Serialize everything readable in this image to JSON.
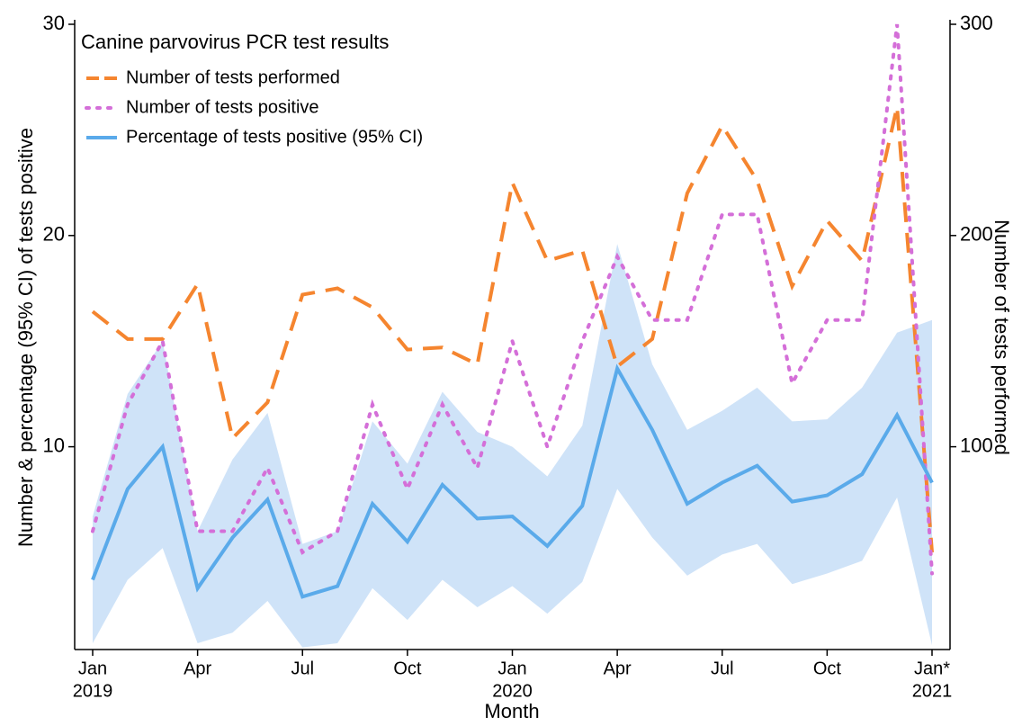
{
  "chart_data": {
    "type": "line",
    "legend_title": "Canine parvovirus PCR test results",
    "x_label": "Month",
    "y_label": "Number & percentage (95% CI) of tests positive",
    "y2_label": "Number of tests performed",
    "categories": [
      "Jan",
      null,
      null,
      "Apr",
      null,
      null,
      "Jul",
      null,
      null,
      "Oct",
      null,
      null,
      "Jan",
      null,
      null,
      "Apr",
      null,
      null,
      "Jul",
      null,
      null,
      "Oct",
      null,
      null,
      "Jan*"
    ],
    "category_years": [
      "2019",
      null,
      null,
      null,
      null,
      null,
      null,
      null,
      null,
      null,
      null,
      null,
      "2020",
      null,
      null,
      null,
      null,
      null,
      null,
      null,
      null,
      null,
      null,
      null,
      "2021"
    ],
    "ylim": [
      0.4,
      30
    ],
    "yticks": [
      10,
      20,
      30
    ],
    "y2lim": [
      4,
      300
    ],
    "y2ticks": [
      100,
      200,
      300
    ],
    "legend": "upper left",
    "series": [
      {
        "name": "Number of tests performed",
        "color": "#f5852f",
        "style": "dashed",
        "axis": "y2",
        "values": [
          164,
          151,
          151,
          177,
          104,
          121,
          172,
          175,
          166,
          146,
          147,
          139,
          225,
          188,
          193,
          138,
          151,
          220,
          252,
          226,
          176,
          207,
          188,
          261,
          50
        ]
      },
      {
        "name": "Number of tests positive",
        "color": "#d46fd8",
        "style": "dotted",
        "values": [
          6,
          12,
          15,
          6,
          6,
          9,
          5,
          6,
          12,
          8,
          12,
          9,
          15,
          10,
          15,
          19,
          16,
          16,
          21,
          21,
          13,
          16,
          16,
          30,
          4
        ]
      },
      {
        "name": "Percentage of tests positive (95% CI)",
        "color": "#5aaaea",
        "style": "solid",
        "ci_color": "#cfe3f8",
        "values": [
          3.7,
          8.0,
          10.0,
          3.3,
          5.7,
          7.5,
          2.9,
          3.4,
          7.3,
          5.5,
          8.2,
          6.6,
          6.7,
          5.3,
          7.2,
          13.7,
          10.8,
          7.3,
          8.3,
          9.1,
          7.4,
          7.7,
          8.7,
          11.5,
          8.3
        ],
        "lower": [
          0.7,
          3.7,
          5.2,
          0.7,
          1.2,
          2.7,
          0.5,
          0.7,
          3.3,
          1.8,
          3.7,
          2.4,
          3.4,
          2.1,
          3.6,
          8.0,
          5.7,
          3.9,
          4.9,
          5.4,
          3.5,
          4.0,
          4.6,
          7.6,
          0.6
        ],
        "upper": [
          6.7,
          12.5,
          15.0,
          6.0,
          9.4,
          11.6,
          5.4,
          6.0,
          11.2,
          9.2,
          12.6,
          10.7,
          10.0,
          8.6,
          11.0,
          19.6,
          13.9,
          10.8,
          11.7,
          12.8,
          11.2,
          11.3,
          12.8,
          15.4,
          16.0
        ]
      }
    ]
  }
}
